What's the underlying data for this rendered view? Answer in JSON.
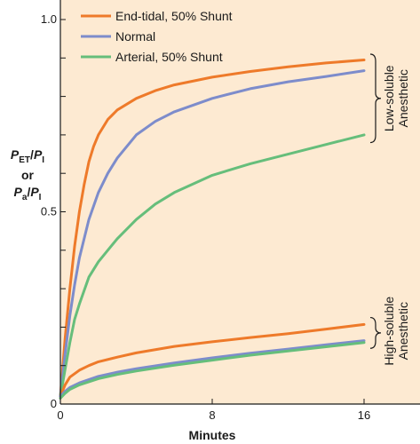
{
  "chart_data": {
    "type": "line",
    "xlabel": "Minutes",
    "ylabel": {
      "line1_main": "P",
      "line1_sub": "ET",
      "line1_slash": "/",
      "line1_main2": "P",
      "line1_sub2": "I",
      "connector": "or",
      "line3_main": "P",
      "line3_sub": "a",
      "line3_slash": "/",
      "line3_main2": "P",
      "line3_sub2": "I"
    },
    "xlim": [
      0,
      16
    ],
    "ylim": [
      0,
      1.0
    ],
    "xticks": [
      {
        "value": 0,
        "label": "0"
      },
      {
        "value": 8,
        "label": "8"
      },
      {
        "value": 16,
        "label": "16"
      }
    ],
    "yticks": [
      {
        "value": 0,
        "label": "0"
      },
      {
        "value": 0.5,
        "label": "0.5"
      },
      {
        "value": 1.0,
        "label": "1.0"
      }
    ],
    "ytick_marks": [
      0.1,
      0.2,
      0.3,
      0.4,
      0.5,
      0.6,
      0.7,
      0.8,
      0.9,
      1.0
    ],
    "legend": {
      "placement": "top-left",
      "entries": [
        {
          "label": "End-tidal, 50% Shunt",
          "color": "#EE7A2A"
        },
        {
          "label": "Normal",
          "color": "#7D8CCB"
        },
        {
          "label": "Arterial, 50% Shunt",
          "color": "#66BE7B"
        }
      ]
    },
    "annotations": {
      "low_soluble": [
        "Low-soluble",
        "Anesthetic"
      ],
      "high_soluble": [
        "High-soluble",
        "Anesthetic"
      ]
    },
    "series": [
      {
        "group": "low",
        "legend": "End-tidal, 50% Shunt",
        "color": "#EE7A2A",
        "x": [
          0,
          0.25,
          0.5,
          0.75,
          1,
          1.25,
          1.5,
          1.75,
          2,
          2.5,
          3,
          4,
          5,
          6,
          8,
          10,
          12,
          14,
          16
        ],
        "y": [
          0.02,
          0.17,
          0.3,
          0.41,
          0.5,
          0.57,
          0.63,
          0.67,
          0.7,
          0.74,
          0.765,
          0.795,
          0.815,
          0.83,
          0.85,
          0.865,
          0.877,
          0.887,
          0.895
        ]
      },
      {
        "group": "low",
        "legend": "Normal",
        "color": "#7D8CCB",
        "x": [
          0,
          0.25,
          0.5,
          0.75,
          1,
          1.5,
          2,
          2.5,
          3,
          4,
          5,
          6,
          8,
          10,
          12,
          14,
          16
        ],
        "y": [
          0.02,
          0.13,
          0.23,
          0.31,
          0.38,
          0.48,
          0.55,
          0.6,
          0.64,
          0.7,
          0.735,
          0.76,
          0.795,
          0.82,
          0.838,
          0.852,
          0.867
        ]
      },
      {
        "group": "low",
        "legend": "Arterial, 50% Shunt",
        "color": "#66BE7B",
        "x": [
          0,
          0.25,
          0.5,
          0.75,
          1,
          1.5,
          2,
          2.5,
          3,
          4,
          5,
          6,
          8,
          10,
          12,
          14,
          16
        ],
        "y": [
          0.02,
          0.09,
          0.16,
          0.22,
          0.26,
          0.33,
          0.37,
          0.4,
          0.43,
          0.48,
          0.52,
          0.55,
          0.595,
          0.625,
          0.65,
          0.675,
          0.7
        ]
      },
      {
        "group": "high",
        "legend": "End-tidal, 50% Shunt",
        "color": "#EE7A2A",
        "x": [
          0,
          0.25,
          0.5,
          1,
          1.5,
          2,
          3,
          4,
          6,
          8,
          10,
          12,
          14,
          16
        ],
        "y": [
          0.02,
          0.05,
          0.07,
          0.088,
          0.1,
          0.11,
          0.122,
          0.133,
          0.15,
          0.162,
          0.173,
          0.183,
          0.195,
          0.207
        ]
      },
      {
        "group": "high",
        "legend": "Normal",
        "color": "#7D8CCB",
        "x": [
          0,
          0.25,
          0.5,
          1,
          2,
          3,
          4,
          6,
          8,
          10,
          12,
          14,
          16
        ],
        "y": [
          0.02,
          0.033,
          0.043,
          0.055,
          0.072,
          0.083,
          0.092,
          0.107,
          0.12,
          0.132,
          0.143,
          0.154,
          0.165
        ]
      },
      {
        "group": "high",
        "legend": "Arterial, 50% Shunt",
        "color": "#66BE7B",
        "x": [
          0,
          0.25,
          0.5,
          1,
          2,
          3,
          4,
          6,
          8,
          10,
          12,
          14,
          16
        ],
        "y": [
          0.015,
          0.028,
          0.038,
          0.05,
          0.066,
          0.077,
          0.086,
          0.101,
          0.114,
          0.127,
          0.138,
          0.149,
          0.16
        ]
      }
    ]
  },
  "colors": {
    "plot_background": "#FDEAD2",
    "axis": "#1a1a1a"
  }
}
